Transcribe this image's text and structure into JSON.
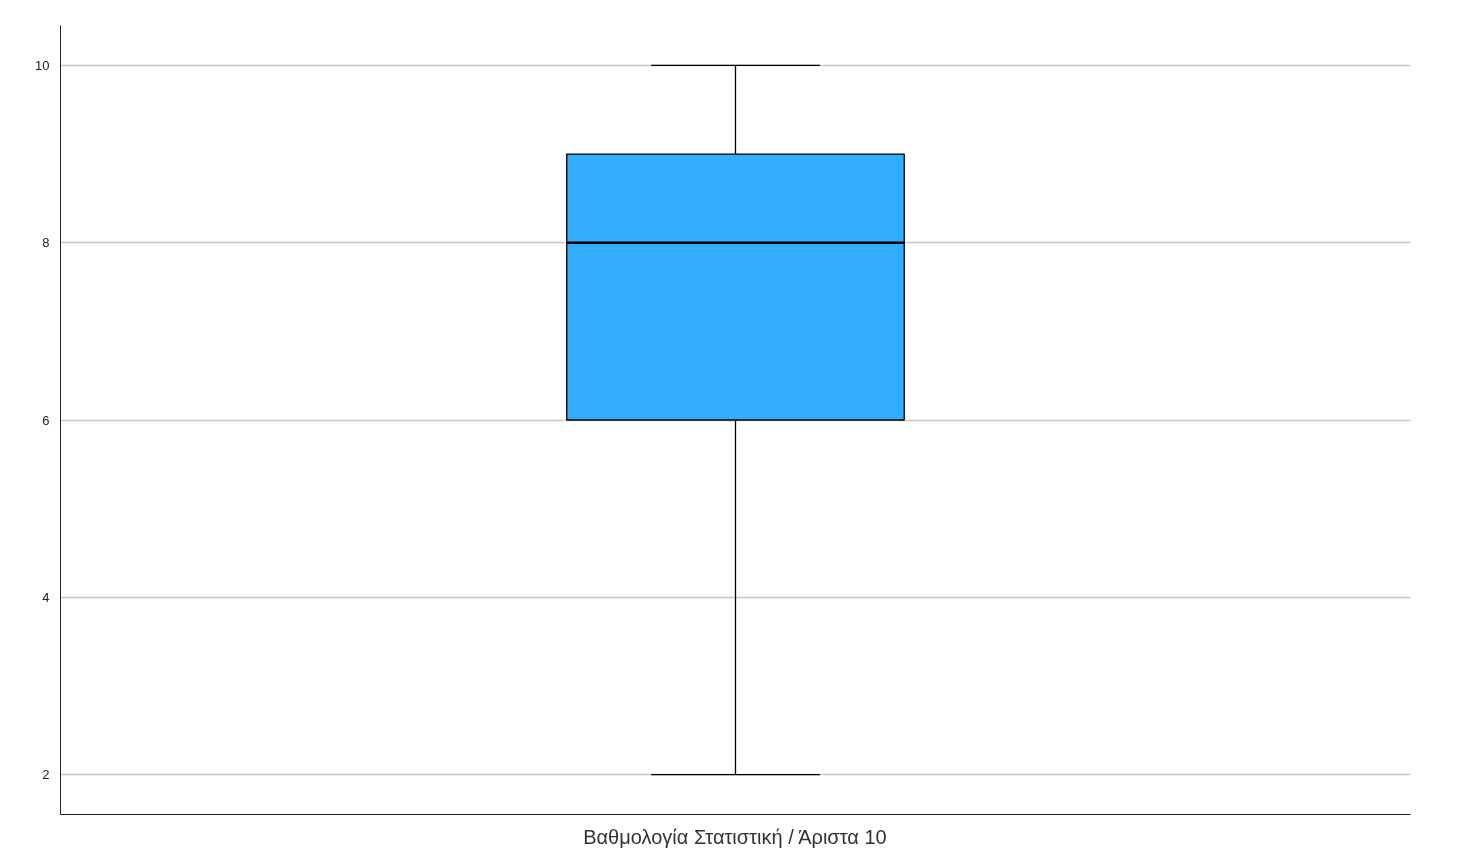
{
  "chart_data": {
    "type": "box",
    "categories": [
      "Βαθμολογία Στατιστική / Άριστα 10"
    ],
    "boxes": [
      {
        "low": 2,
        "q1": 6,
        "median": 8,
        "q3": 9,
        "high": 10
      }
    ],
    "color": "#33adff",
    "ylim": [
      1.55,
      10.45
    ],
    "yticks": [
      2,
      4,
      6,
      8,
      10
    ],
    "grid": "y"
  }
}
